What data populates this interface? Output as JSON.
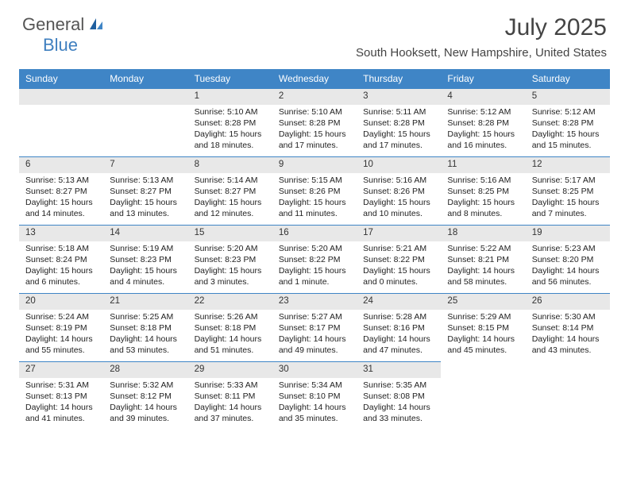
{
  "logo": {
    "part1": "General",
    "part2": "Blue"
  },
  "title": "July 2025",
  "location": "South Hooksett, New Hampshire, United States",
  "header_bg": "#3f85c6",
  "daynum_bg": "#e8e8e8",
  "border_color": "#3f85c6",
  "dayNames": [
    "Sunday",
    "Monday",
    "Tuesday",
    "Wednesday",
    "Thursday",
    "Friday",
    "Saturday"
  ],
  "weeks": [
    [
      {
        "n": "",
        "sr": "",
        "ss": "",
        "d1": "",
        "d2": ""
      },
      {
        "n": "",
        "sr": "",
        "ss": "",
        "d1": "",
        "d2": ""
      },
      {
        "n": "1",
        "sr": "Sunrise: 5:10 AM",
        "ss": "Sunset: 8:28 PM",
        "d1": "Daylight: 15 hours",
        "d2": "and 18 minutes."
      },
      {
        "n": "2",
        "sr": "Sunrise: 5:10 AM",
        "ss": "Sunset: 8:28 PM",
        "d1": "Daylight: 15 hours",
        "d2": "and 17 minutes."
      },
      {
        "n": "3",
        "sr": "Sunrise: 5:11 AM",
        "ss": "Sunset: 8:28 PM",
        "d1": "Daylight: 15 hours",
        "d2": "and 17 minutes."
      },
      {
        "n": "4",
        "sr": "Sunrise: 5:12 AM",
        "ss": "Sunset: 8:28 PM",
        "d1": "Daylight: 15 hours",
        "d2": "and 16 minutes."
      },
      {
        "n": "5",
        "sr": "Sunrise: 5:12 AM",
        "ss": "Sunset: 8:28 PM",
        "d1": "Daylight: 15 hours",
        "d2": "and 15 minutes."
      }
    ],
    [
      {
        "n": "6",
        "sr": "Sunrise: 5:13 AM",
        "ss": "Sunset: 8:27 PM",
        "d1": "Daylight: 15 hours",
        "d2": "and 14 minutes."
      },
      {
        "n": "7",
        "sr": "Sunrise: 5:13 AM",
        "ss": "Sunset: 8:27 PM",
        "d1": "Daylight: 15 hours",
        "d2": "and 13 minutes."
      },
      {
        "n": "8",
        "sr": "Sunrise: 5:14 AM",
        "ss": "Sunset: 8:27 PM",
        "d1": "Daylight: 15 hours",
        "d2": "and 12 minutes."
      },
      {
        "n": "9",
        "sr": "Sunrise: 5:15 AM",
        "ss": "Sunset: 8:26 PM",
        "d1": "Daylight: 15 hours",
        "d2": "and 11 minutes."
      },
      {
        "n": "10",
        "sr": "Sunrise: 5:16 AM",
        "ss": "Sunset: 8:26 PM",
        "d1": "Daylight: 15 hours",
        "d2": "and 10 minutes."
      },
      {
        "n": "11",
        "sr": "Sunrise: 5:16 AM",
        "ss": "Sunset: 8:25 PM",
        "d1": "Daylight: 15 hours",
        "d2": "and 8 minutes."
      },
      {
        "n": "12",
        "sr": "Sunrise: 5:17 AM",
        "ss": "Sunset: 8:25 PM",
        "d1": "Daylight: 15 hours",
        "d2": "and 7 minutes."
      }
    ],
    [
      {
        "n": "13",
        "sr": "Sunrise: 5:18 AM",
        "ss": "Sunset: 8:24 PM",
        "d1": "Daylight: 15 hours",
        "d2": "and 6 minutes."
      },
      {
        "n": "14",
        "sr": "Sunrise: 5:19 AM",
        "ss": "Sunset: 8:23 PM",
        "d1": "Daylight: 15 hours",
        "d2": "and 4 minutes."
      },
      {
        "n": "15",
        "sr": "Sunrise: 5:20 AM",
        "ss": "Sunset: 8:23 PM",
        "d1": "Daylight: 15 hours",
        "d2": "and 3 minutes."
      },
      {
        "n": "16",
        "sr": "Sunrise: 5:20 AM",
        "ss": "Sunset: 8:22 PM",
        "d1": "Daylight: 15 hours",
        "d2": "and 1 minute."
      },
      {
        "n": "17",
        "sr": "Sunrise: 5:21 AM",
        "ss": "Sunset: 8:22 PM",
        "d1": "Daylight: 15 hours",
        "d2": "and 0 minutes."
      },
      {
        "n": "18",
        "sr": "Sunrise: 5:22 AM",
        "ss": "Sunset: 8:21 PM",
        "d1": "Daylight: 14 hours",
        "d2": "and 58 minutes."
      },
      {
        "n": "19",
        "sr": "Sunrise: 5:23 AM",
        "ss": "Sunset: 8:20 PM",
        "d1": "Daylight: 14 hours",
        "d2": "and 56 minutes."
      }
    ],
    [
      {
        "n": "20",
        "sr": "Sunrise: 5:24 AM",
        "ss": "Sunset: 8:19 PM",
        "d1": "Daylight: 14 hours",
        "d2": "and 55 minutes."
      },
      {
        "n": "21",
        "sr": "Sunrise: 5:25 AM",
        "ss": "Sunset: 8:18 PM",
        "d1": "Daylight: 14 hours",
        "d2": "and 53 minutes."
      },
      {
        "n": "22",
        "sr": "Sunrise: 5:26 AM",
        "ss": "Sunset: 8:18 PM",
        "d1": "Daylight: 14 hours",
        "d2": "and 51 minutes."
      },
      {
        "n": "23",
        "sr": "Sunrise: 5:27 AM",
        "ss": "Sunset: 8:17 PM",
        "d1": "Daylight: 14 hours",
        "d2": "and 49 minutes."
      },
      {
        "n": "24",
        "sr": "Sunrise: 5:28 AM",
        "ss": "Sunset: 8:16 PM",
        "d1": "Daylight: 14 hours",
        "d2": "and 47 minutes."
      },
      {
        "n": "25",
        "sr": "Sunrise: 5:29 AM",
        "ss": "Sunset: 8:15 PM",
        "d1": "Daylight: 14 hours",
        "d2": "and 45 minutes."
      },
      {
        "n": "26",
        "sr": "Sunrise: 5:30 AM",
        "ss": "Sunset: 8:14 PM",
        "d1": "Daylight: 14 hours",
        "d2": "and 43 minutes."
      }
    ],
    [
      {
        "n": "27",
        "sr": "Sunrise: 5:31 AM",
        "ss": "Sunset: 8:13 PM",
        "d1": "Daylight: 14 hours",
        "d2": "and 41 minutes."
      },
      {
        "n": "28",
        "sr": "Sunrise: 5:32 AM",
        "ss": "Sunset: 8:12 PM",
        "d1": "Daylight: 14 hours",
        "d2": "and 39 minutes."
      },
      {
        "n": "29",
        "sr": "Sunrise: 5:33 AM",
        "ss": "Sunset: 8:11 PM",
        "d1": "Daylight: 14 hours",
        "d2": "and 37 minutes."
      },
      {
        "n": "30",
        "sr": "Sunrise: 5:34 AM",
        "ss": "Sunset: 8:10 PM",
        "d1": "Daylight: 14 hours",
        "d2": "and 35 minutes."
      },
      {
        "n": "31",
        "sr": "Sunrise: 5:35 AM",
        "ss": "Sunset: 8:08 PM",
        "d1": "Daylight: 14 hours",
        "d2": "and 33 minutes."
      },
      {
        "n": "",
        "sr": "",
        "ss": "",
        "d1": "",
        "d2": ""
      },
      {
        "n": "",
        "sr": "",
        "ss": "",
        "d1": "",
        "d2": ""
      }
    ]
  ]
}
